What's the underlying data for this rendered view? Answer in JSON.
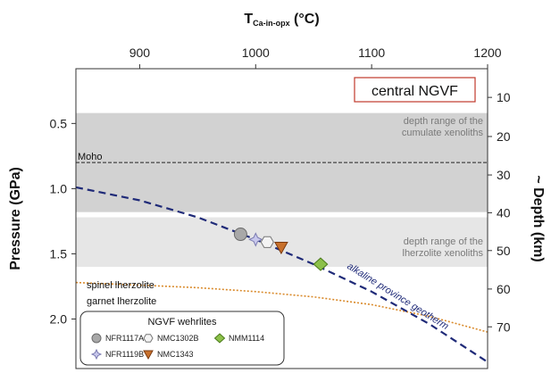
{
  "chart_data": {
    "type": "scatter",
    "x_axis": {
      "label_main": "T",
      "label_sub": "Ca-in-opx",
      "label_unit": " (°C)",
      "range": [
        845,
        1200
      ],
      "ticks": [
        900,
        1000,
        1100,
        1200
      ],
      "tick_labels": [
        "900",
        "1000",
        "1100",
        "1200"
      ],
      "position": "top"
    },
    "y_axis_left": {
      "label": "Pressure (GPa)",
      "range": [
        0.08,
        2.38
      ],
      "ticks": [
        0.5,
        1.0,
        1.5,
        2.0
      ],
      "tick_labels": [
        "0.5",
        "1.0",
        "1.5",
        "2.0"
      ],
      "inverted": true
    },
    "y_axis_right": {
      "label": "~ Depth (km)",
      "ticks": [
        10,
        20,
        30,
        40,
        50,
        60,
        70
      ],
      "tick_labels": [
        "10",
        "20",
        "30",
        "40",
        "50",
        "60",
        "70"
      ],
      "pressure_at_ticks": [
        0.3,
        0.6,
        0.895,
        1.185,
        1.475,
        1.77,
        2.06
      ],
      "inverted": true
    },
    "title_box": "central NGVF",
    "bands": [
      {
        "p_from": 0.42,
        "p_to": 1.18,
        "color": "#d2d2d2",
        "label_lines": [
          "depth range of the",
          "cumulate xenoliths"
        ]
      },
      {
        "p_from": 1.22,
        "p_to": 1.6,
        "color": "#e6e6e6",
        "label_lines": [
          "depth range of the",
          "lherzolite xenoliths"
        ]
      }
    ],
    "moho": {
      "pressure": 0.8,
      "label": "Moho"
    },
    "geotherm": {
      "label": "alkaline province geotherm",
      "color": "#1f2a78",
      "x": [
        845,
        900,
        950,
        1000,
        1050,
        1100,
        1150,
        1200
      ],
      "y": [
        0.99,
        1.09,
        1.22,
        1.39,
        1.58,
        1.79,
        2.04,
        2.33
      ]
    },
    "spinel_garnet_transition": {
      "color": "#d98a2b",
      "x": [
        845,
        900,
        950,
        1000,
        1050,
        1100,
        1150,
        1200
      ],
      "y": [
        1.72,
        1.74,
        1.76,
        1.79,
        1.83,
        1.89,
        1.98,
        2.1
      ],
      "label_above": "spinel lherzolite",
      "label_below": "garnet lherzolite"
    },
    "series": [
      {
        "name": "NFR1117A",
        "marker": "circle",
        "color": "#a8a8a8",
        "stroke": "#6a6a6a",
        "points": [
          [
            987,
            1.35
          ]
        ]
      },
      {
        "name": "NFR1119B",
        "marker": "star4",
        "color": "#c8c8ec",
        "stroke": "#7a7ab0",
        "points": [
          [
            1000,
            1.39
          ]
        ]
      },
      {
        "name": "NMC1302B",
        "marker": "hexagon",
        "color": "#f4f4f4",
        "stroke": "#777777",
        "points": [
          [
            1010,
            1.41
          ]
        ]
      },
      {
        "name": "NMC1343",
        "marker": "triangle-down",
        "color": "#c8702c",
        "stroke": "#7a3a10",
        "points": [
          [
            1022,
            1.45
          ]
        ]
      },
      {
        "name": "NMM1114",
        "marker": "diamond",
        "color": "#8cc04a",
        "stroke": "#4a7a1a",
        "points": [
          [
            1056,
            1.58
          ]
        ]
      }
    ],
    "legend": {
      "title": "NGVF wehrlites",
      "placement": "bottom-left"
    },
    "grid": false
  }
}
